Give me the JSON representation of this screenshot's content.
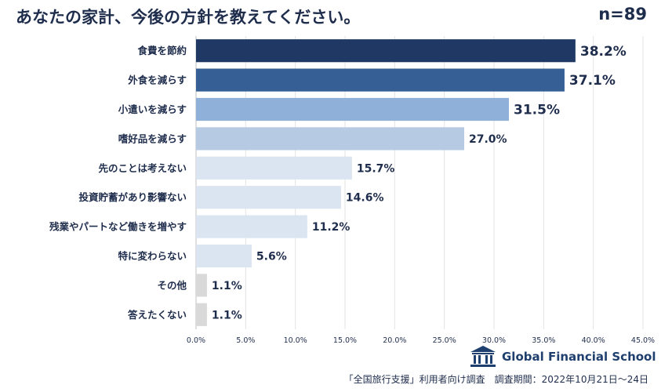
{
  "title": "あなたの家計、今後の方針を教えてください。",
  "sample": "n=89",
  "chart_data": {
    "type": "bar",
    "orientation": "horizontal",
    "title": "あなたの家計、今後の方針を教えてください。",
    "categories": [
      "食費を節約",
      "外食を減らす",
      "小遣いを減らす",
      "嗜好品を減らす",
      "先のことは考えない",
      "投資貯蓄があり影響ない",
      "残業やパートなど働きを増やす",
      "特に変わらない",
      "その他",
      "答えたくない"
    ],
    "values": [
      38.2,
      37.1,
      31.5,
      27.0,
      15.7,
      14.6,
      11.2,
      5.6,
      1.1,
      1.1
    ],
    "value_labels": [
      "38.2%",
      "37.1%",
      "31.5%",
      "27.0%",
      "15.7%",
      "14.6%",
      "11.2%",
      "5.6%",
      "1.1%",
      "1.1%"
    ],
    "bar_colors": [
      "#1f3864",
      "#355f95",
      "#8fb0d8",
      "#b6cae4",
      "#dbe5f1",
      "#dbe5f1",
      "#dbe5f1",
      "#dbe5f1",
      "#d9d9d9",
      "#d9d9d9"
    ],
    "xlim": [
      0,
      45
    ],
    "xticks": [
      0,
      5,
      10,
      15,
      20,
      25,
      30,
      35,
      40,
      45
    ],
    "xtick_labels": [
      "0.0%",
      "5.0%",
      "10.0%",
      "15.0%",
      "20.0%",
      "25.0%",
      "30.0%",
      "35.0%",
      "40.0%",
      "45.0%"
    ],
    "grid": true,
    "xlabel": "",
    "ylabel": ""
  },
  "brand": {
    "name": "Global Financial School",
    "icon": "school-building-icon",
    "color": "#1f3f6e"
  },
  "footnote": "「全国旅行支援」利用者向け調査　調査期間：2022年10月21日～24日"
}
